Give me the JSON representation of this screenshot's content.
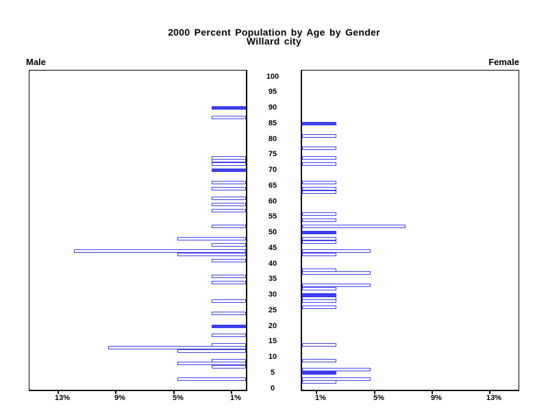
{
  "colors": {
    "bar_blue": "#3e3ef0",
    "outline_fill": "#ffffff",
    "axis": "#000000",
    "background": "#ffffff",
    "text": "#000000"
  },
  "chart_data": {
    "type": "bar",
    "subtype": "population_pyramid",
    "title": "2000 Percent Population by Age by Gender",
    "subtitle": "Willard city",
    "left_series_label": "Male",
    "right_series_label": "Female",
    "unit_percent_one_bar": 2.38,
    "age_axis": {
      "min": 0,
      "max": 100,
      "step": 5,
      "tick_ages": [
        100,
        95,
        90,
        85,
        80,
        75,
        70,
        65,
        60,
        55,
        50,
        45,
        40,
        35,
        30,
        25,
        20,
        15,
        10,
        5,
        0
      ]
    },
    "percent_axis": {
      "ticks_percent": [
        1,
        5,
        9,
        13
      ],
      "tick_labels": [
        "1%",
        "5%",
        "9%",
        "13%"
      ],
      "max_percent": 15,
      "left_axis_label_order": [
        "13%",
        "9%",
        "5%",
        "1%"
      ],
      "right_axis_label_order": [
        "1%",
        "5%",
        "9%",
        "13%"
      ]
    },
    "legend": {
      "solid_fill_means": "solid blue filled bar",
      "outline_fill_means": "white bar with blue outline"
    },
    "series": [
      {
        "name": "Male",
        "side": "left",
        "points": [
          {
            "age": 90,
            "percent": 2.38,
            "solid": true
          },
          {
            "age": 87,
            "percent": 2.38,
            "solid": false
          },
          {
            "age": 74,
            "percent": 2.38,
            "solid": false
          },
          {
            "age": 73,
            "percent": 2.38,
            "solid": false
          },
          {
            "age": 72,
            "percent": 2.38,
            "solid": false
          },
          {
            "age": 70,
            "percent": 2.38,
            "solid": true
          },
          {
            "age": 66,
            "percent": 2.38,
            "solid": false
          },
          {
            "age": 64,
            "percent": 2.38,
            "solid": false
          },
          {
            "age": 61,
            "percent": 2.38,
            "solid": false
          },
          {
            "age": 59,
            "percent": 2.38,
            "solid": false
          },
          {
            "age": 57,
            "percent": 2.38,
            "solid": false
          },
          {
            "age": 52,
            "percent": 2.38,
            "solid": false
          },
          {
            "age": 48,
            "percent": 4.76,
            "solid": false
          },
          {
            "age": 46,
            "percent": 2.38,
            "solid": false
          },
          {
            "age": 44,
            "percent": 11.9,
            "solid": false
          },
          {
            "age": 43,
            "percent": 4.76,
            "solid": false
          },
          {
            "age": 41,
            "percent": 2.38,
            "solid": false
          },
          {
            "age": 36,
            "percent": 2.38,
            "solid": false
          },
          {
            "age": 34,
            "percent": 2.38,
            "solid": false
          },
          {
            "age": 28,
            "percent": 2.38,
            "solid": false
          },
          {
            "age": 24,
            "percent": 2.38,
            "solid": false
          },
          {
            "age": 20,
            "percent": 2.38,
            "solid": true
          },
          {
            "age": 17,
            "percent": 2.38,
            "solid": false
          },
          {
            "age": 14,
            "percent": 2.38,
            "solid": false
          },
          {
            "age": 13,
            "percent": 9.52,
            "solid": false
          },
          {
            "age": 12,
            "percent": 4.76,
            "solid": false
          },
          {
            "age": 9,
            "percent": 2.38,
            "solid": false
          },
          {
            "age": 8,
            "percent": 4.76,
            "solid": false
          },
          {
            "age": 7,
            "percent": 2.38,
            "solid": false
          },
          {
            "age": 3,
            "percent": 4.76,
            "solid": false
          }
        ]
      },
      {
        "name": "Female",
        "side": "right",
        "points": [
          {
            "age": 85,
            "percent": 2.38,
            "solid": true
          },
          {
            "age": 81,
            "percent": 2.38,
            "solid": false
          },
          {
            "age": 77,
            "percent": 2.38,
            "solid": false
          },
          {
            "age": 74,
            "percent": 2.38,
            "solid": false
          },
          {
            "age": 72,
            "percent": 2.38,
            "solid": false
          },
          {
            "age": 66,
            "percent": 2.38,
            "solid": false
          },
          {
            "age": 64,
            "percent": 2.38,
            "solid": false
          },
          {
            "age": 63,
            "percent": 2.38,
            "solid": false
          },
          {
            "age": 56,
            "percent": 2.38,
            "solid": false
          },
          {
            "age": 54,
            "percent": 2.38,
            "solid": false
          },
          {
            "age": 52,
            "percent": 7.14,
            "solid": false
          },
          {
            "age": 50,
            "percent": 2.38,
            "solid": true
          },
          {
            "age": 48,
            "percent": 2.38,
            "solid": false
          },
          {
            "age": 47,
            "percent": 2.38,
            "solid": false
          },
          {
            "age": 44,
            "percent": 4.76,
            "solid": false
          },
          {
            "age": 43,
            "percent": 2.38,
            "solid": false
          },
          {
            "age": 38,
            "percent": 2.38,
            "solid": false
          },
          {
            "age": 37,
            "percent": 4.76,
            "solid": false
          },
          {
            "age": 33,
            "percent": 4.76,
            "solid": false
          },
          {
            "age": 32,
            "percent": 2.38,
            "solid": false
          },
          {
            "age": 30,
            "percent": 2.38,
            "solid": true
          },
          {
            "age": 29,
            "percent": 2.38,
            "solid": false
          },
          {
            "age": 28,
            "percent": 2.38,
            "solid": false
          },
          {
            "age": 26,
            "percent": 2.38,
            "solid": false
          },
          {
            "age": 14,
            "percent": 2.38,
            "solid": false
          },
          {
            "age": 9,
            "percent": 2.38,
            "solid": false
          },
          {
            "age": 6,
            "percent": 4.76,
            "solid": false
          },
          {
            "age": 5,
            "percent": 2.38,
            "solid": true
          },
          {
            "age": 3,
            "percent": 4.76,
            "solid": false
          },
          {
            "age": 2,
            "percent": 2.38,
            "solid": false
          }
        ]
      }
    ]
  }
}
